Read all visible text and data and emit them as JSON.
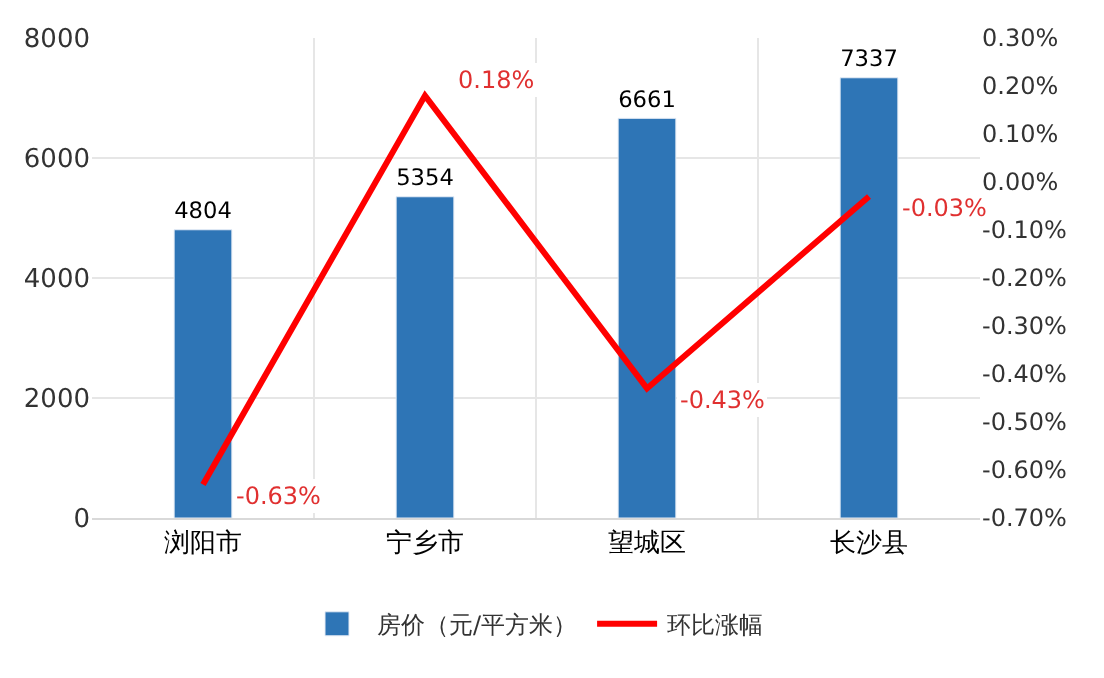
{
  "chart_data": {
    "type": "bar",
    "categories": [
      "浏阳市",
      "宁乡市",
      "望城区",
      "长沙县"
    ],
    "series": [
      {
        "name": "房价（元/平方米）",
        "color": "#2e75b6",
        "values": [
          4804,
          5354,
          6661,
          7337
        ],
        "value_labels": [
          "4804",
          "5354",
          "6661",
          "7337"
        ]
      },
      {
        "name": "环比涨幅",
        "type": "line",
        "axis": "y2",
        "color": "#ff0000",
        "values": [
          -0.63,
          0.18,
          -0.43,
          -0.03
        ],
        "value_labels": [
          "-0.63%",
          "0.18%",
          "-0.43%",
          "-0.03%"
        ],
        "marker": "none",
        "line_style": "solid"
      }
    ],
    "ylim": [
      0,
      8000
    ],
    "yticks": [
      0,
      2000,
      4000,
      6000,
      8000
    ],
    "y2lim": [
      -0.7,
      0.3
    ],
    "y2ticks": [
      {
        "value": -0.7,
        "label": "-0.70%"
      },
      {
        "value": -0.6,
        "label": "-0.60%"
      },
      {
        "value": -0.5,
        "label": "-0.50%"
      },
      {
        "value": -0.4,
        "label": "-0.40%"
      },
      {
        "value": -0.3,
        "label": "-0.30%"
      },
      {
        "value": -0.2,
        "label": "-0.20%"
      },
      {
        "value": -0.1,
        "label": "-0.10%"
      },
      {
        "value": 0,
        "label": "0.00%"
      },
      {
        "value": 0.1,
        "label": "0.10%"
      },
      {
        "value": 0.2,
        "label": "0.20%"
      },
      {
        "value": 0.3,
        "label": "0.30%"
      }
    ],
    "grid": true,
    "legend": "bottom"
  }
}
